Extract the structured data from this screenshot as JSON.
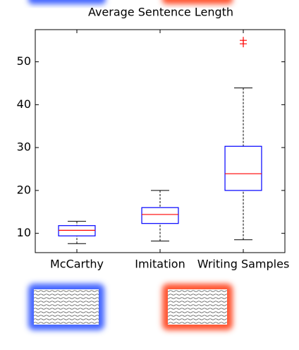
{
  "chart_data": {
    "type": "box",
    "title": "Average Sentence Length",
    "categories": [
      "McCarthy",
      "Imitation",
      "Writing Samples"
    ],
    "boxes": [
      {
        "min": 7.6,
        "q1": 9.4,
        "median": 10.7,
        "q3": 11.8,
        "max": 12.8,
        "outliers": []
      },
      {
        "min": 8.2,
        "q1": 12.3,
        "median": 14.4,
        "q3": 16.0,
        "max": 20.0,
        "outliers": []
      },
      {
        "min": 8.5,
        "q1": 20.0,
        "median": 23.9,
        "q3": 30.3,
        "max": 43.9,
        "outliers": [
          54.2,
          55.0
        ]
      }
    ],
    "box_color": "#0000ff",
    "median_color": "#ff0000",
    "whisker_color": "#000000",
    "outlier_color": "#ff0000",
    "ylim": [
      5.5,
      57.5
    ],
    "yticks": [
      10,
      20,
      30,
      40,
      50
    ],
    "grid": false
  }
}
